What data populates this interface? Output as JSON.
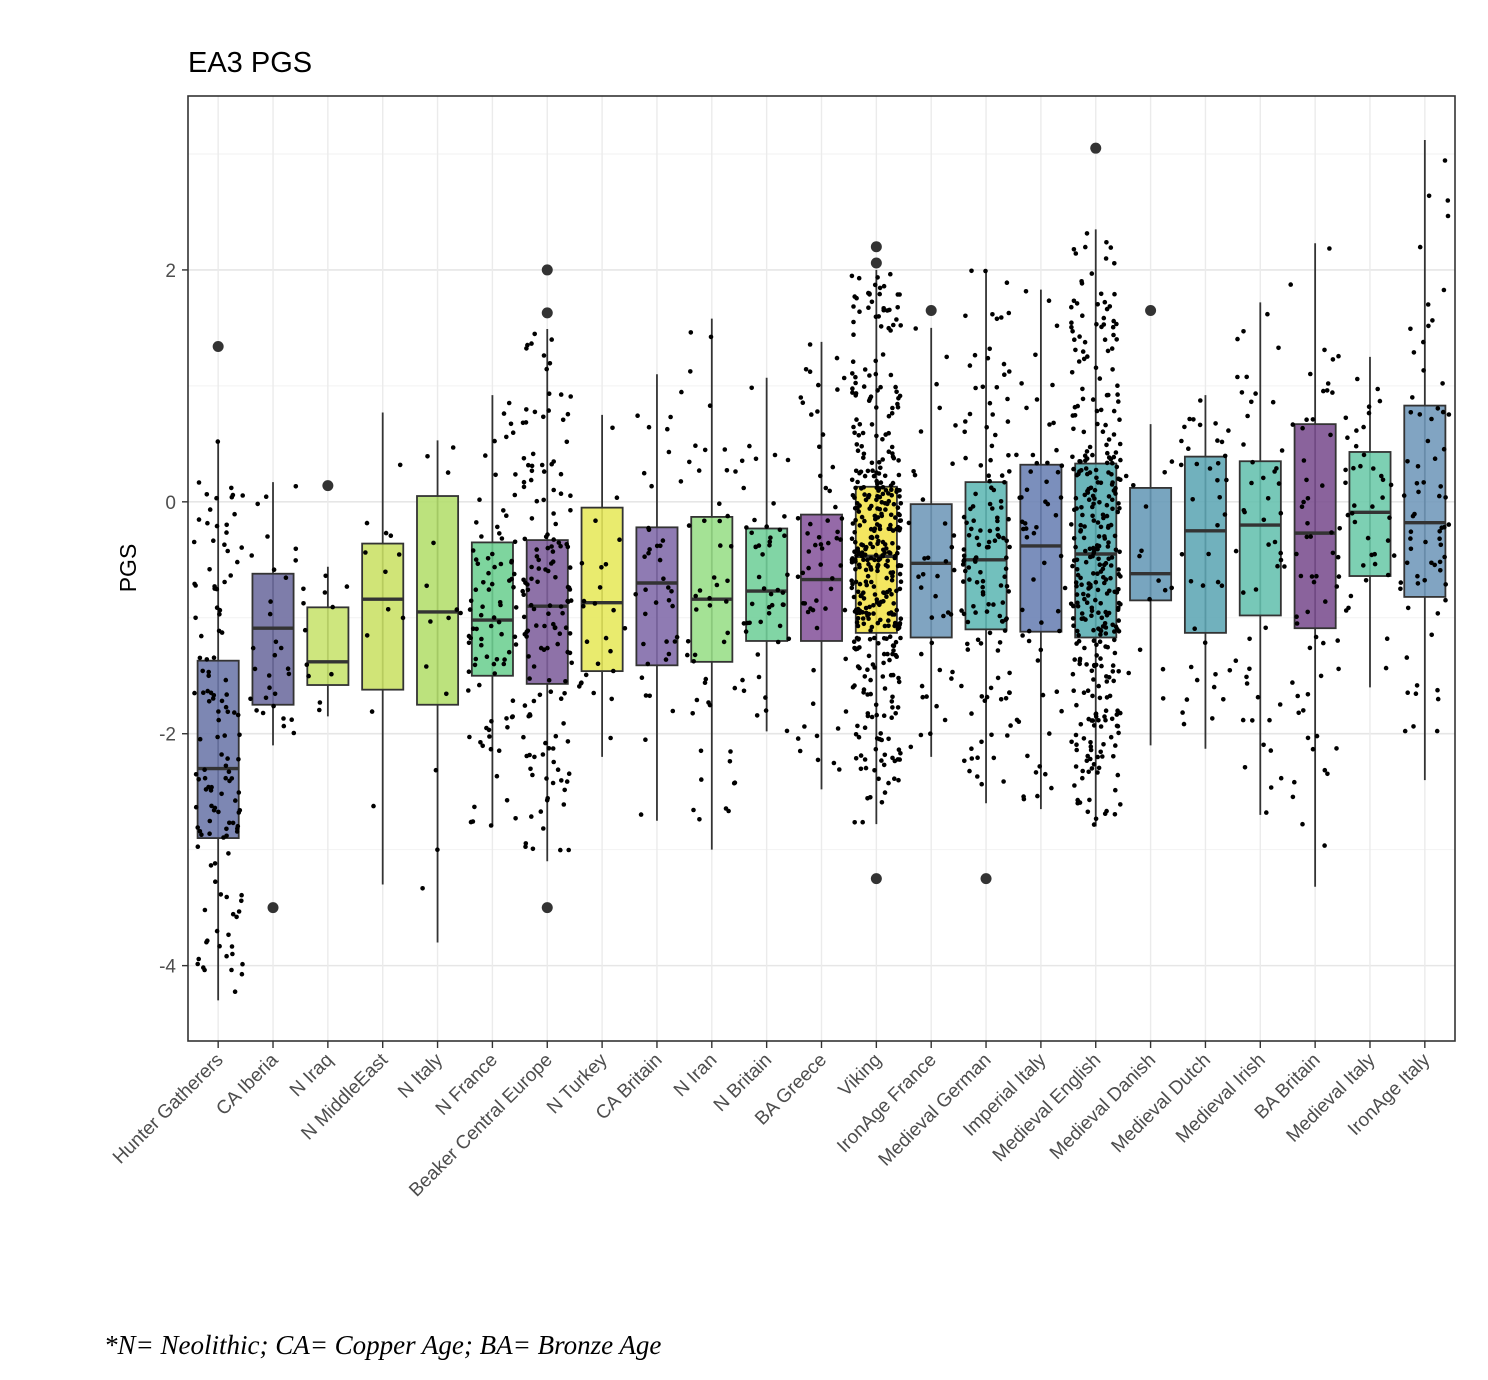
{
  "chart_data": {
    "type": "boxplot",
    "title": "EA3 PGS",
    "xlabel": "",
    "ylabel": "PGS",
    "ylim": [
      -4.65,
      3.5
    ],
    "yticks": [
      -4,
      -2,
      0,
      2
    ],
    "grid": true,
    "legend": "none",
    "groups": [
      {
        "label": "Hunter Gatherers",
        "color": "#6b76a8",
        "n": 130,
        "q1": -2.9,
        "median": -2.3,
        "q3": -1.37,
        "whisker_low": -4.3,
        "whisker_high": 0.53,
        "outliers": [
          1.34
        ]
      },
      {
        "label": "CA Iberia",
        "color": "#6c6b9e",
        "n": 30,
        "q1": -1.75,
        "median": -1.09,
        "q3": -0.62,
        "whisker_low": -2.1,
        "whisker_high": 0.17,
        "outliers": [
          -3.5
        ]
      },
      {
        "label": "N Iraq",
        "color": "#c7e36c",
        "n": 12,
        "q1": -1.58,
        "median": -1.38,
        "q3": -0.91,
        "whisker_low": -1.85,
        "whisker_high": -0.56,
        "outliers": [
          0.14
        ]
      },
      {
        "label": "N MiddleEast",
        "color": "#c9e064",
        "n": 12,
        "q1": -1.62,
        "median": -0.84,
        "q3": -0.36,
        "whisker_low": -3.3,
        "whisker_high": 0.77,
        "outliers": []
      },
      {
        "label": "N Italy",
        "color": "#b3de6b",
        "n": 14,
        "q1": -1.75,
        "median": -0.95,
        "q3": 0.05,
        "whisker_low": -3.8,
        "whisker_high": 0.53,
        "outliers": []
      },
      {
        "label": "N France",
        "color": "#6ccf91",
        "n": 90,
        "q1": -1.5,
        "median": -1.02,
        "q3": -0.35,
        "whisker_low": -2.8,
        "whisker_high": 0.92,
        "outliers": []
      },
      {
        "label": "Beaker Central Europe",
        "color": "#7e5e9c",
        "n": 150,
        "q1": -1.57,
        "median": -0.9,
        "q3": -0.33,
        "whisker_low": -3.1,
        "whisker_high": 1.49,
        "outliers": [
          2.0,
          1.63,
          -3.5
        ]
      },
      {
        "label": "N Turkey",
        "color": "#e6e85a",
        "n": 25,
        "q1": -1.46,
        "median": -0.87,
        "q3": -0.05,
        "whisker_low": -2.2,
        "whisker_high": 0.75,
        "outliers": []
      },
      {
        "label": "CA Britain",
        "color": "#7f69a8",
        "n": 40,
        "q1": -1.41,
        "median": -0.7,
        "q3": -0.22,
        "whisker_low": -2.75,
        "whisker_high": 1.1,
        "outliers": []
      },
      {
        "label": "N Iran",
        "color": "#97de86",
        "n": 50,
        "q1": -1.38,
        "median": -0.84,
        "q3": -0.13,
        "whisker_low": -3.0,
        "whisker_high": 1.58,
        "outliers": []
      },
      {
        "label": "N Britain",
        "color": "#6fcf99",
        "n": 50,
        "q1": -1.2,
        "median": -0.77,
        "q3": -0.23,
        "whisker_low": -1.98,
        "whisker_high": 1.07,
        "outliers": []
      },
      {
        "label": "BA Greece",
        "color": "#86559c",
        "n": 60,
        "q1": -1.2,
        "median": -0.67,
        "q3": -0.11,
        "whisker_low": -2.48,
        "whisker_high": 1.38,
        "outliers": []
      },
      {
        "label": "Viking",
        "color": "#f2e24a",
        "n": 420,
        "q1": -1.13,
        "median": -0.47,
        "q3": 0.13,
        "whisker_low": -2.78,
        "whisker_high": 2.0,
        "outliers": [
          2.2,
          2.06,
          -3.25
        ]
      },
      {
        "label": "IronAge France",
        "color": "#6e97b8",
        "n": 40,
        "q1": -1.17,
        "median": -0.53,
        "q3": -0.02,
        "whisker_low": -2.2,
        "whisker_high": 1.5,
        "outliers": [
          1.65
        ]
      },
      {
        "label": "Medieval German",
        "color": "#5fb7b4",
        "n": 140,
        "q1": -1.1,
        "median": -0.5,
        "q3": 0.17,
        "whisker_low": -2.6,
        "whisker_high": 2.0,
        "outliers": [
          -3.25
        ]
      },
      {
        "label": "Imperial Italy",
        "color": "#6980b3",
        "n": 60,
        "q1": -1.12,
        "median": -0.38,
        "q3": 0.32,
        "whisker_low": -2.65,
        "whisker_high": 1.83,
        "outliers": []
      },
      {
        "label": "Medieval English",
        "color": "#57acb0",
        "n": 360,
        "q1": -1.17,
        "median": -0.45,
        "q3": 0.33,
        "whisker_low": -2.8,
        "whisker_high": 2.35,
        "outliers": [
          3.05
        ]
      },
      {
        "label": "Medieval Danish",
        "color": "#6598b6",
        "n": 15,
        "q1": -0.85,
        "median": -0.62,
        "q3": 0.12,
        "whisker_low": -2.1,
        "whisker_high": 0.67,
        "outliers": [
          1.65
        ]
      },
      {
        "label": "Medieval Dutch",
        "color": "#5da6b4",
        "n": 40,
        "q1": -1.13,
        "median": -0.25,
        "q3": 0.39,
        "whisker_low": -2.13,
        "whisker_high": 0.92,
        "outliers": []
      },
      {
        "label": "Medieval Irish",
        "color": "#64c0ae",
        "n": 50,
        "q1": -0.98,
        "median": -0.2,
        "q3": 0.35,
        "whisker_low": -2.7,
        "whisker_high": 1.72,
        "outliers": []
      },
      {
        "label": "BA Britain",
        "color": "#7a4d8e",
        "n": 60,
        "q1": -1.09,
        "median": -0.27,
        "q3": 0.67,
        "whisker_low": -3.32,
        "whisker_high": 2.23,
        "outliers": []
      },
      {
        "label": "Medieval Italy",
        "color": "#6bc9a8",
        "n": 40,
        "q1": -0.64,
        "median": -0.09,
        "q3": 0.43,
        "whisker_low": -1.6,
        "whisker_high": 1.25,
        "outliers": []
      },
      {
        "label": "IronAge Italy",
        "color": "#6f97b9",
        "n": 70,
        "q1": -0.82,
        "median": -0.18,
        "q3": 0.83,
        "whisker_low": -2.4,
        "whisker_high": 3.12,
        "outliers": []
      }
    ]
  },
  "footnote": "*N= Neolithic; CA= Copper Age; BA= Bronze Age"
}
